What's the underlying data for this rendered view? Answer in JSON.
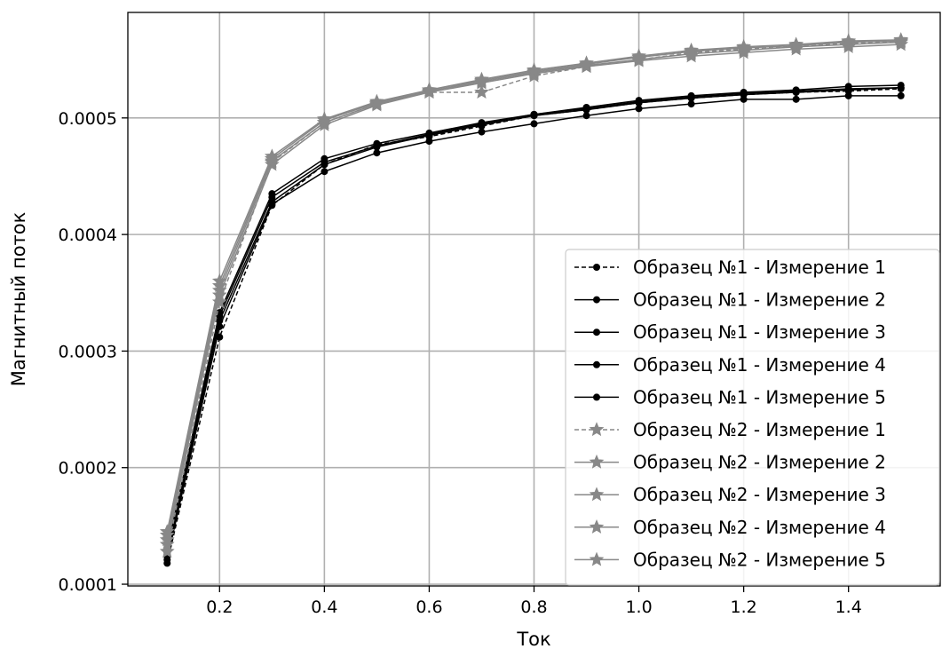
{
  "chart_data": {
    "type": "line",
    "title": "",
    "xlabel": "Ток",
    "ylabel": "Магнитный поток",
    "xlim": [
      0.025,
      1.575
    ],
    "ylim": [
      9.85e-05,
      0.0005905
    ],
    "xticks": [
      0.2,
      0.4,
      0.6,
      0.8,
      1.0,
      1.2,
      1.4
    ],
    "xtick_labels": [
      "0.2",
      "0.4",
      "0.6",
      "0.8",
      "1.0",
      "1.2",
      "1.4"
    ],
    "yticks": [
      0.0001,
      0.0002,
      0.0003,
      0.0004,
      0.0005
    ],
    "ytick_labels": [
      "0.0001",
      "0.0002",
      "0.0003",
      "0.0004",
      "0.0005"
    ],
    "grid": true,
    "legend_position": "lower-right",
    "x": [
      0.1,
      0.2,
      0.3,
      0.4,
      0.5,
      0.6,
      0.7,
      0.8,
      0.9,
      1.0,
      1.1,
      1.2,
      1.3,
      1.4,
      1.5
    ],
    "series": [
      {
        "name": "Образец №1 - Измерение 1",
        "color": "#000000",
        "dash": "dashed",
        "marker": "circle",
        "values": [
          0.000118,
          0.000312,
          0.000425,
          0.00046,
          0.000477,
          0.000484,
          0.000493,
          0.000502,
          0.000507,
          0.000513,
          0.000517,
          0.00052,
          0.000522,
          0.000523,
          0.000525
        ]
      },
      {
        "name": "Образец №1 - Измерение 2",
        "color": "#000000",
        "dash": "solid",
        "marker": "circle",
        "values": [
          0.000121,
          0.000321,
          0.000426,
          0.000454,
          0.00047,
          0.00048,
          0.000488,
          0.000495,
          0.000502,
          0.000508,
          0.000512,
          0.000516,
          0.000516,
          0.000519,
          0.000519
        ]
      },
      {
        "name": "Образец №1 - Измерение 3",
        "color": "#000000",
        "dash": "solid",
        "marker": "circle",
        "values": [
          0.000124,
          0.000326,
          0.000428,
          0.00046,
          0.000475,
          0.000485,
          0.000494,
          0.000502,
          0.000507,
          0.000513,
          0.000517,
          0.00052,
          0.000522,
          0.000524,
          0.000526
        ]
      },
      {
        "name": "Образец №1 - Измерение 4",
        "color": "#000000",
        "dash": "solid",
        "marker": "circle",
        "values": [
          0.000127,
          0.00033,
          0.000432,
          0.000462,
          0.000476,
          0.000486,
          0.000495,
          0.000503,
          0.000508,
          0.000514,
          0.000518,
          0.000521,
          0.000523,
          0.000525,
          0.000526
        ]
      },
      {
        "name": "Образец №1 - Измерение 5",
        "color": "#000000",
        "dash": "solid",
        "marker": "circle",
        "values": [
          0.00013,
          0.000333,
          0.000435,
          0.000465,
          0.000478,
          0.000487,
          0.000496,
          0.000503,
          0.000509,
          0.000515,
          0.000519,
          0.000522,
          0.000524,
          0.000527,
          0.000528
        ]
      },
      {
        "name": "Образец №2 - Измерение 1",
        "color": "#888888",
        "dash": "dashed",
        "marker": "star",
        "values": [
          0.000128,
          0.000342,
          0.000462,
          0.000496,
          0.000512,
          0.000522,
          0.000522,
          0.000536,
          0.000544,
          0.00055,
          0.000556,
          0.000559,
          0.000561,
          0.000564,
          0.000566
        ]
      },
      {
        "name": "Образец №2 - Измерение 2",
        "color": "#888888",
        "dash": "solid",
        "marker": "star",
        "values": [
          0.000134,
          0.000348,
          0.00046,
          0.000494,
          0.000511,
          0.000522,
          0.00053,
          0.000538,
          0.000544,
          0.000549,
          0.000553,
          0.000556,
          0.000559,
          0.000561,
          0.000563
        ]
      },
      {
        "name": "Образец №2 - Измерение 3",
        "color": "#888888",
        "dash": "solid",
        "marker": "star",
        "values": [
          0.000138,
          0.000352,
          0.000463,
          0.000496,
          0.000512,
          0.000523,
          0.000531,
          0.000539,
          0.000545,
          0.00055,
          0.000555,
          0.000558,
          0.000561,
          0.000563,
          0.000565
        ]
      },
      {
        "name": "Образец №2 - Измерение 4",
        "color": "#888888",
        "dash": "solid",
        "marker": "star",
        "values": [
          0.000142,
          0.000356,
          0.000465,
          0.000498,
          0.000513,
          0.000524,
          0.000532,
          0.00054,
          0.000546,
          0.000552,
          0.000557,
          0.00056,
          0.000562,
          0.000565,
          0.000566
        ]
      },
      {
        "name": "Образец №2 - Измерение 5",
        "color": "#888888",
        "dash": "solid",
        "marker": "star",
        "values": [
          0.000145,
          0.00036,
          0.000467,
          0.000499,
          0.000514,
          0.000524,
          0.000533,
          0.000541,
          0.000547,
          0.000553,
          0.000558,
          0.000561,
          0.000563,
          0.000566,
          0.000567
        ]
      }
    ]
  }
}
